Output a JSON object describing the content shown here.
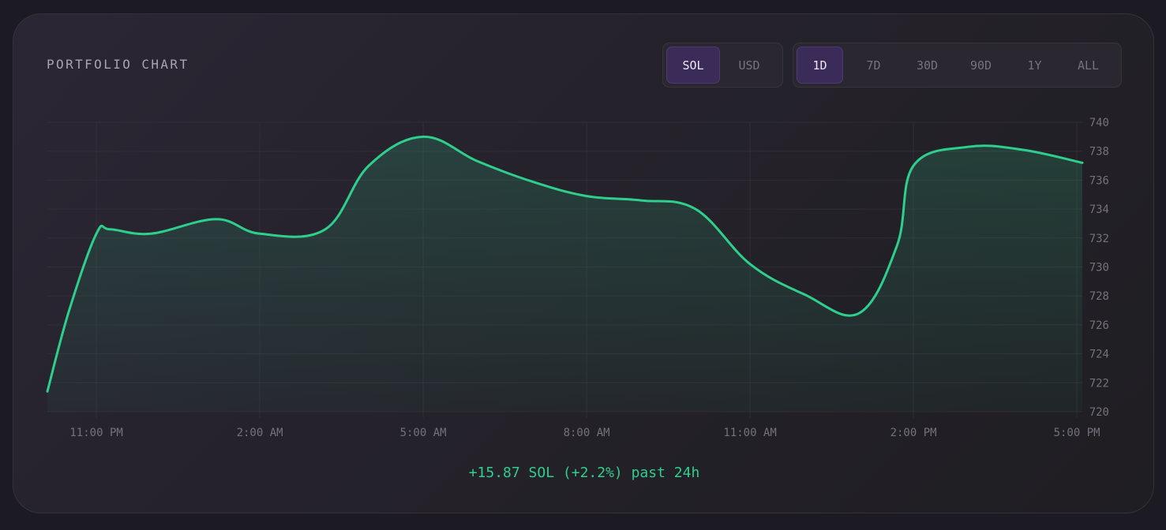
{
  "header": {
    "title": "PORTFOLIO CHART"
  },
  "currency_toggle": {
    "options": [
      "SOL",
      "USD"
    ],
    "selected": "SOL"
  },
  "range_toggle": {
    "options": [
      "1D",
      "7D",
      "30D",
      "90D",
      "1Y",
      "ALL"
    ],
    "selected": "1D"
  },
  "summary": {
    "text": "+15.87 SOL (+2.2%) past 24h"
  },
  "colors": {
    "line": "#2ecf8d",
    "active_toggle": "#3b2b58",
    "summary": "#2ecf8d"
  },
  "chart_data": {
    "type": "area",
    "title": "",
    "xlabel": "",
    "ylabel": "",
    "ylim": [
      720,
      740
    ],
    "y_ticks": [
      720,
      722,
      724,
      726,
      728,
      730,
      732,
      734,
      736,
      738,
      740
    ],
    "x_tick_labels": [
      "11:00 PM",
      "2:00 AM",
      "5:00 AM",
      "8:00 AM",
      "11:00 AM",
      "2:00 PM",
      "5:00 PM"
    ],
    "x_ticks_hours": [
      0,
      3,
      6,
      9,
      12,
      15,
      18
    ],
    "xlim_hours": [
      -0.9,
      18.1
    ],
    "grid": true,
    "series": [
      {
        "x_hours": [
          -0.9,
          -0.5,
          0.0,
          0.25,
          1.0,
          2.2,
          3.0,
          4.2,
          5.0,
          6.0,
          7.0,
          8.0,
          9.0,
          10.0,
          11.0,
          12.0,
          13.0,
          14.0,
          14.7,
          15.0,
          16.0,
          17.0,
          18.1
        ],
        "values": [
          721.4,
          727.0,
          732.3,
          732.6,
          732.3,
          733.3,
          732.3,
          732.6,
          737.0,
          739.0,
          737.3,
          735.9,
          734.9,
          734.6,
          734.0,
          730.2,
          728.1,
          726.8,
          731.5,
          737.0,
          738.3,
          738.1,
          737.2
        ]
      }
    ]
  }
}
